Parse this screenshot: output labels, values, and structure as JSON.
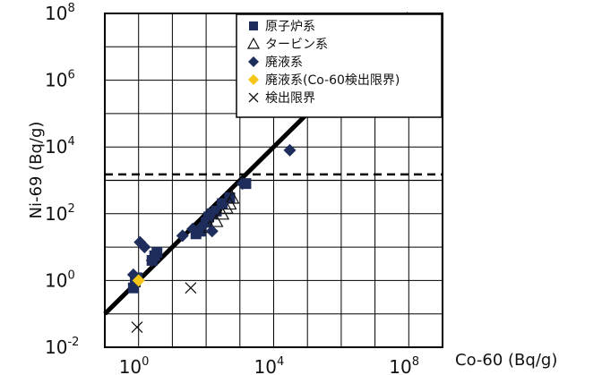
{
  "chart_data": {
    "type": "scatter",
    "xlabel": "Co-60 (Bq/g)",
    "ylabel": "Ni-69 (Bq/g)",
    "x_scale": "log",
    "y_scale": "log",
    "xlim": [
      0.1,
      1000000000
    ],
    "ylim": [
      0.01,
      100000000
    ],
    "grid": true,
    "x_ticks": [
      {
        "base": "10",
        "exp": "0",
        "value": 1
      },
      {
        "base": "10",
        "exp": "4",
        "value": 10000
      },
      {
        "base": "10",
        "exp": "8",
        "value": 100000000
      }
    ],
    "y_ticks": [
      {
        "base": "10",
        "exp": "-2",
        "value": 0.01
      },
      {
        "base": "10",
        "exp": "0",
        "value": 1
      },
      {
        "base": "10",
        "exp": "2",
        "value": 100
      },
      {
        "base": "10",
        "exp": "4",
        "value": 10000
      },
      {
        "base": "10",
        "exp": "6",
        "value": 1000000
      },
      {
        "base": "10",
        "exp": "8",
        "value": 100000000
      }
    ],
    "legend_position": "top-right",
    "series": [
      {
        "name": "原子炉系",
        "marker": "square",
        "color": "#1f2d5c",
        "legend_symbol": "■",
        "points": [
          [
            0.7,
            0.6
          ],
          [
            0.8,
            0.9
          ],
          [
            0.9,
            1.2
          ],
          [
            2.5,
            4
          ],
          [
            3,
            5.5
          ],
          [
            3.5,
            7
          ],
          [
            50,
            25
          ],
          [
            70,
            30
          ],
          [
            100,
            55
          ],
          [
            120,
            80
          ],
          [
            150,
            100
          ],
          [
            200,
            120
          ],
          [
            300,
            200
          ],
          [
            500,
            300
          ],
          [
            1500,
            800
          ]
        ]
      },
      {
        "name": "タービン系",
        "marker": "triangle-open",
        "color": "#111111",
        "legend_symbol": "△",
        "points": [
          [
            130,
            40
          ],
          [
            200,
            60
          ],
          [
            300,
            100
          ],
          [
            400,
            150
          ],
          [
            500,
            200
          ],
          [
            600,
            300
          ]
        ]
      },
      {
        "name": "廃液系",
        "marker": "diamond",
        "color": "#1f2d5c",
        "legend_symbol": "◆",
        "points": [
          [
            0.7,
            1.5
          ],
          [
            1.1,
            14
          ],
          [
            1.5,
            10
          ],
          [
            2.5,
            4
          ],
          [
            20,
            22
          ],
          [
            40,
            35
          ],
          [
            80,
            45
          ],
          [
            150,
            30
          ],
          [
            300,
            200
          ],
          [
            1200,
            800
          ],
          [
            30000,
            8000
          ]
        ]
      },
      {
        "name": "廃液系(Co-60検出限界)",
        "marker": "diamond",
        "color": "#f5c518",
        "legend_symbol": "◆",
        "points": [
          [
            1.0,
            1.0
          ]
        ]
      },
      {
        "name": "検出限界",
        "marker": "x",
        "color": "#111111",
        "legend_symbol": "×",
        "points": [
          [
            0.9,
            0.04
          ],
          [
            35,
            0.6
          ]
        ]
      }
    ],
    "fit_line": {
      "slope": 1,
      "intercept": 0.0
    },
    "threshold_dashed_y": 1500,
    "reference_solid_y": 1000
  }
}
